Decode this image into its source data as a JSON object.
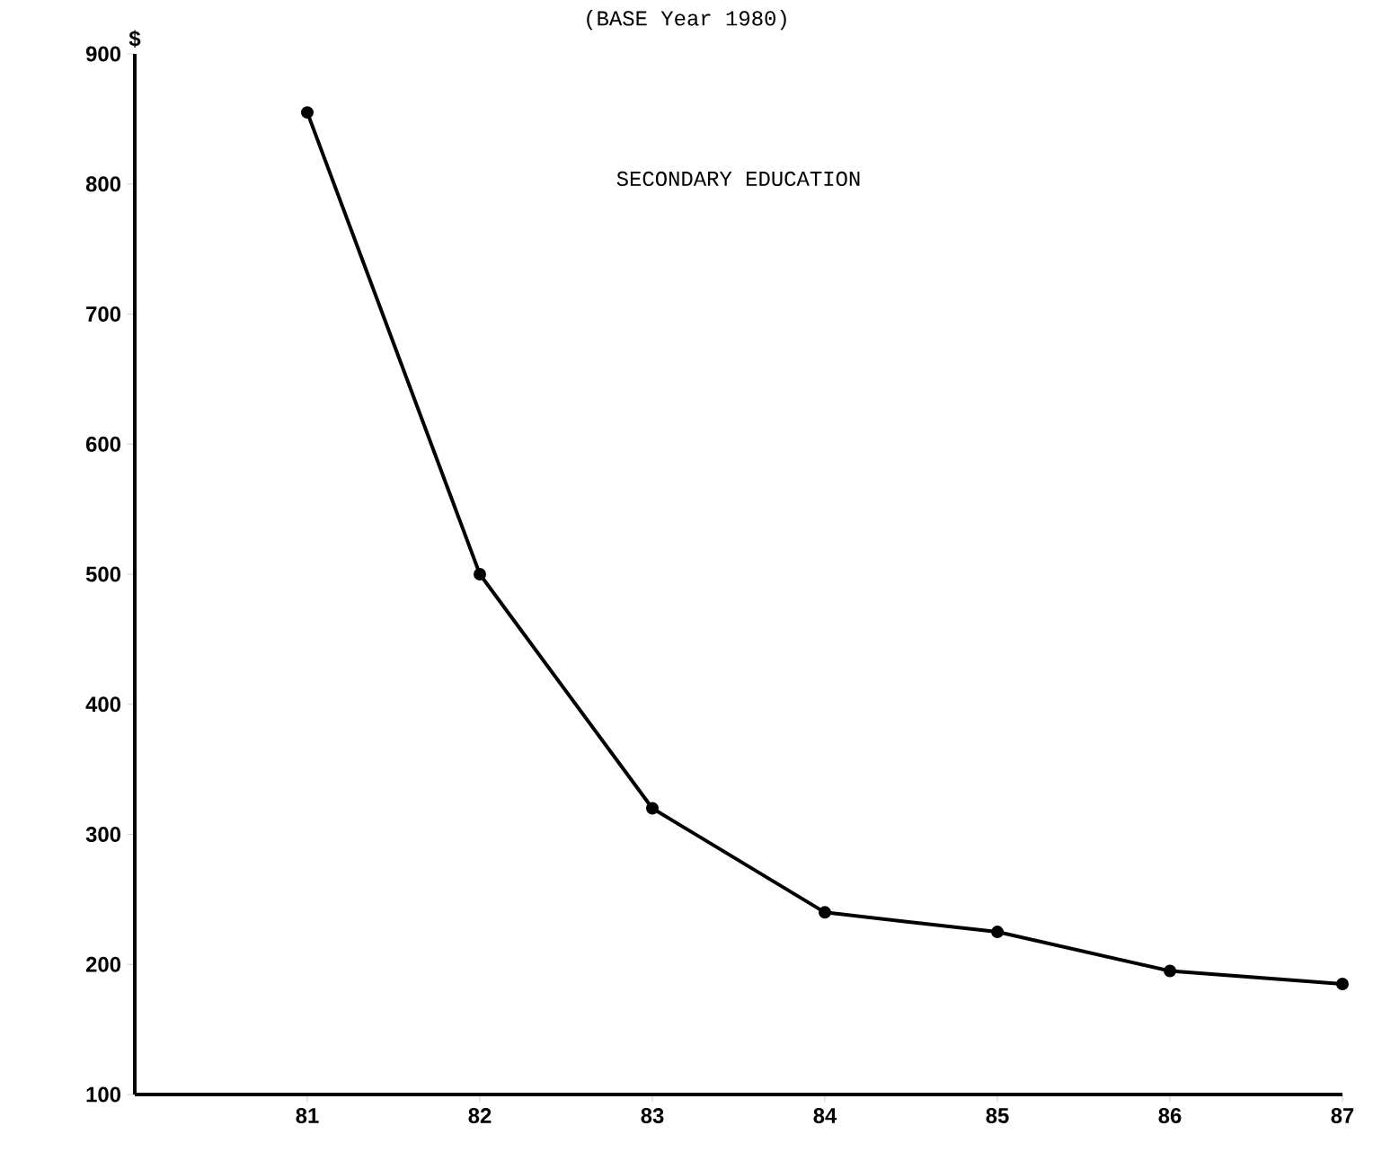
{
  "chart_data": {
    "type": "line",
    "title": "(BASE Year 1980)",
    "ylabel": "$",
    "categories": [
      "81",
      "82",
      "83",
      "84",
      "85",
      "86",
      "87"
    ],
    "values": [
      855,
      500,
      320,
      240,
      225,
      195,
      185
    ],
    "color": "#000000",
    "marker": "circle",
    "line_style": "solid",
    "ylim": [
      100,
      900
    ],
    "yticks": [
      100,
      200,
      300,
      400,
      500,
      600,
      700,
      800,
      900
    ],
    "annotations": [
      "SECONDARY EDUCATION"
    ]
  }
}
